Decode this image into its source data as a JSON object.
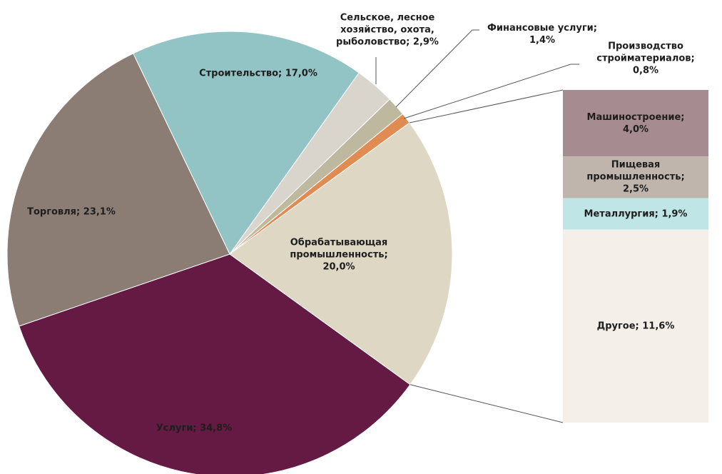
{
  "chart_data": {
    "type": "pie",
    "label_separator": "; ",
    "categories": [
      "Строительство",
      "Сельское, лесное хозяйство, охота, рыболовство",
      "Финансовые услуги",
      "Производство стройматериалов",
      "Обрабатывающая промышленность",
      "Услуги",
      "Торговля"
    ],
    "values": [
      17.0,
      2.9,
      1.4,
      0.8,
      20.0,
      34.8,
      23.1
    ],
    "value_labels": [
      "17,0%",
      "2,9%",
      "1,4%",
      "0,8%",
      "20,0%",
      "34,8%",
      "23,1%"
    ],
    "colors": [
      "#93c4c5",
      "#d9d4cc",
      "#bdb89e",
      "#e08b52",
      "#ddd7c4",
      "#641a42",
      "#8c7d74"
    ],
    "breakdown": {
      "type": "bar",
      "categories": [
        "Машиностроение",
        "Пищевая промышленность",
        "Металлургия",
        "Другое"
      ],
      "values": [
        4.0,
        2.5,
        1.9,
        11.6
      ],
      "value_labels": [
        "4,0%",
        "2,5%",
        "1,9%",
        "11,6%"
      ],
      "colors": [
        "#a68b91",
        "#c0b5ac",
        "#bfe5e6",
        "#f4f0e9"
      ]
    }
  }
}
